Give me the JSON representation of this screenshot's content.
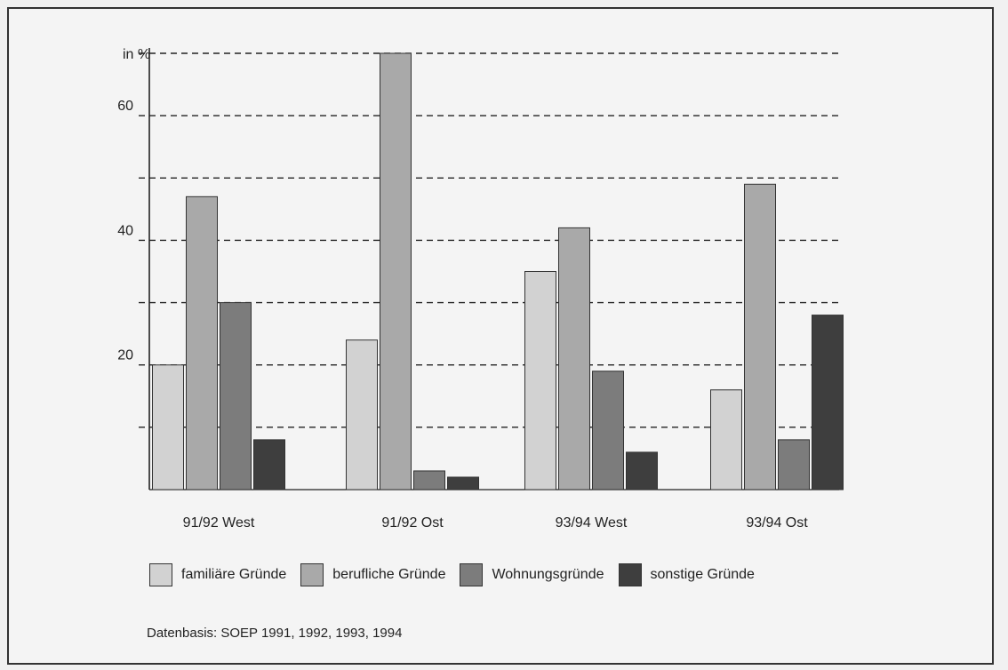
{
  "chart_data": {
    "type": "bar",
    "ylabel": "in %",
    "ylim": [
      0,
      70
    ],
    "yticks": [
      20,
      40,
      60
    ],
    "grid": "dashed horizontal lines every 10",
    "legend_position": "bottom",
    "categories": [
      "91/92 West",
      "91/92 Ost",
      "93/94 West",
      "93/94 Ost"
    ],
    "series": [
      {
        "name": "familiäre Gründe",
        "color": "#d2d2d2",
        "values": [
          20,
          24,
          35,
          16
        ]
      },
      {
        "name": "berufliche Gründe",
        "color": "#a9a9a9",
        "values": [
          47,
          70,
          42,
          49
        ]
      },
      {
        "name": "Wohnungsgründe",
        "color": "#7c7c7c",
        "values": [
          30,
          3,
          19,
          8
        ]
      },
      {
        "name": "sonstige Gründe",
        "color": "#3e3e3e",
        "values": [
          8,
          2,
          6,
          28
        ]
      }
    ]
  },
  "source": "Datenbasis: SOEP 1991, 1992, 1993, 1994"
}
